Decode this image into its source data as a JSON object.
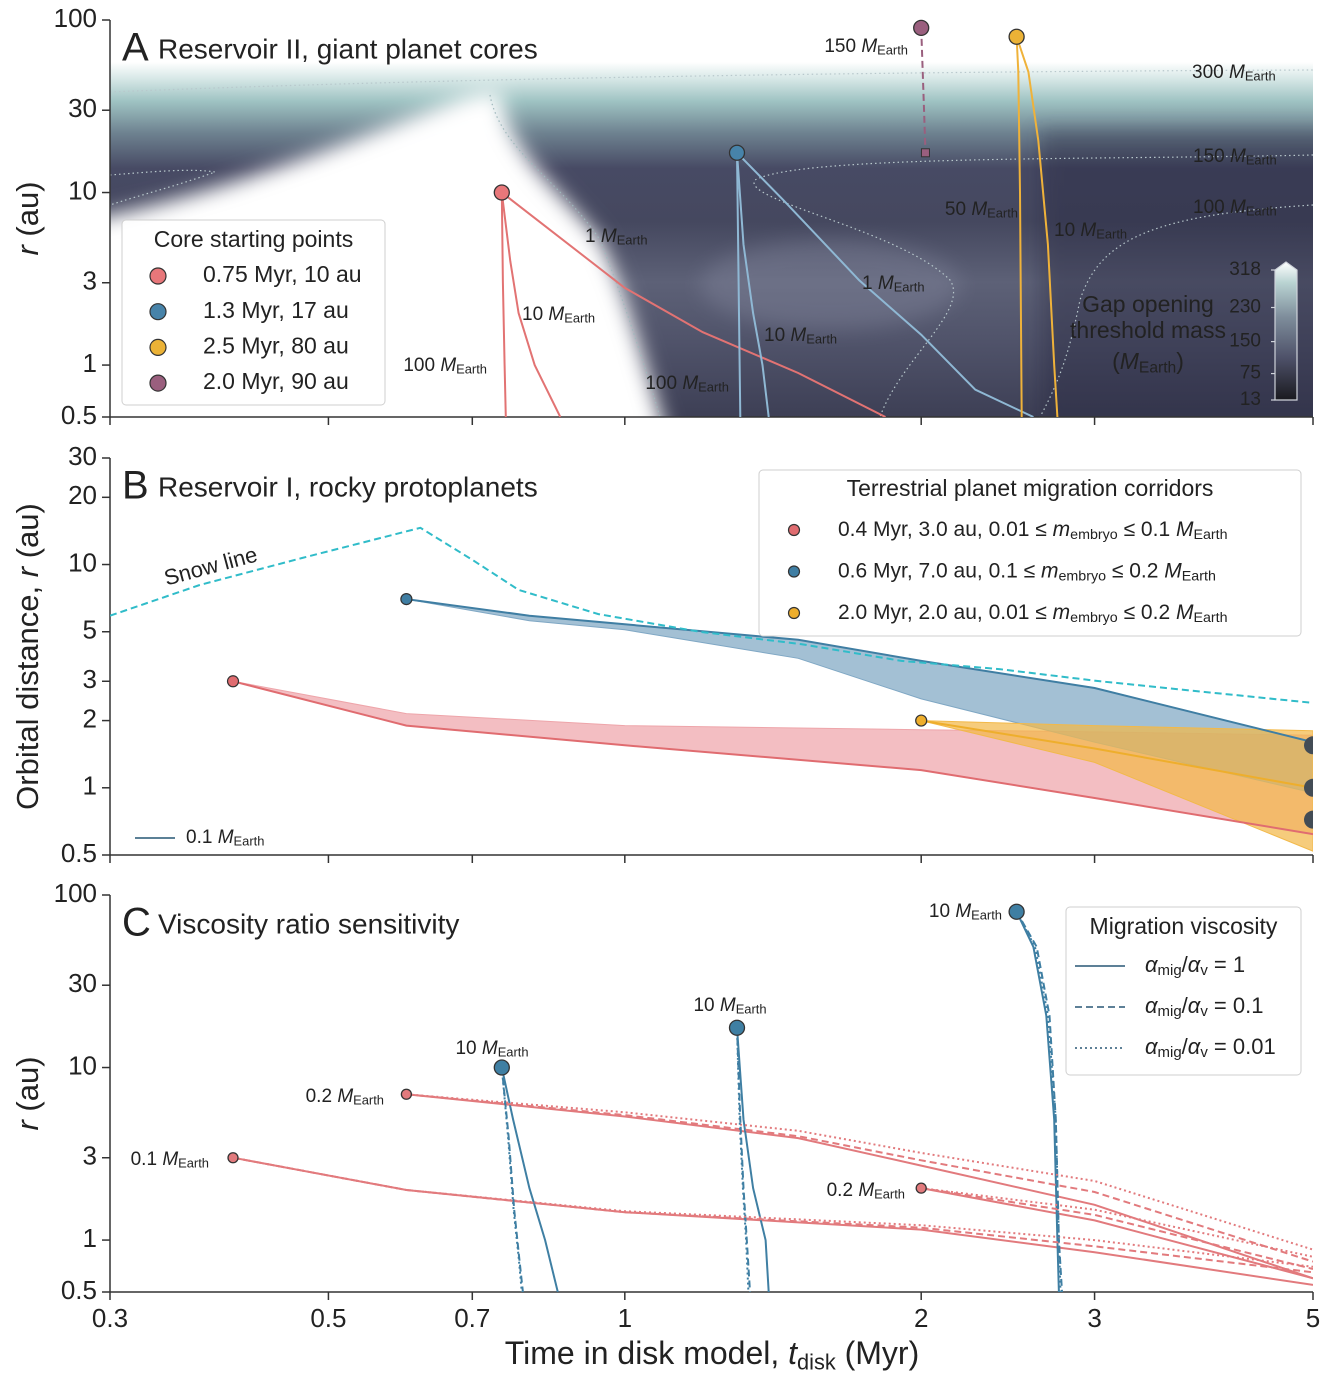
{
  "chart_data": [
    {
      "type": "line",
      "letter": "A",
      "title": "Reservoir II, giant planet cores",
      "ylabel": [
        {
          "i": "r"
        },
        " (au)"
      ],
      "log_x": true,
      "log_y": true,
      "xlim": [
        0.3,
        5
      ],
      "ylim": [
        0.5,
        100
      ],
      "yticks": [
        0.5,
        1,
        3,
        10,
        30,
        100
      ],
      "legend_loc": "lower left",
      "cores": {
        "title": "Core starting points",
        "items": [
          {
            "name": "0.75 Myr, 10 au",
            "color": "#e8777a",
            "x": 0.75,
            "y": 10
          },
          {
            "name": "1.3 Myr, 17 au",
            "color": "#4783a9",
            "x": 1.3,
            "y": 17
          },
          {
            "name": "2.5 Myr, 80 au",
            "color": "#ebb236",
            "x": 2.5,
            "y": 80
          },
          {
            "name": "2.0 Myr, 90 au",
            "color": "#9a5f7e",
            "x": 2.0,
            "y": 90
          }
        ]
      },
      "series": [
        {
          "label": [
            "1 ",
            {
              "i": "M"
            },
            {
              "sub": "Earth"
            }
          ],
          "color": "#e27373",
          "dash": "solid",
          "x": [
            0.75,
            1.0,
            1.2,
            1.5,
            1.84
          ],
          "y": [
            10,
            2.8,
            1.55,
            0.9,
            0.5
          ]
        },
        {
          "label": [
            "10 ",
            {
              "i": "M"
            },
            {
              "sub": "Earth"
            }
          ],
          "color": "#e27373",
          "dash": "solid",
          "x": [
            0.75,
            0.765,
            0.78,
            0.81,
            0.86
          ],
          "y": [
            10,
            4,
            2,
            1,
            0.5
          ]
        },
        {
          "label": [
            "100 ",
            {
              "i": "M"
            },
            {
              "sub": "Earth"
            }
          ],
          "color": "#e27373",
          "dash": "solid",
          "x": [
            0.75,
            0.752,
            0.755,
            0.757
          ],
          "y": [
            10,
            3,
            1,
            0.5
          ]
        },
        {
          "label": [
            "1 ",
            {
              "i": "M"
            },
            {
              "sub": "Earth"
            }
          ],
          "color": "#8fb8d4",
          "dash": "solid",
          "x": [
            1.3,
            1.45,
            1.73,
            2.0,
            2.27,
            2.6
          ],
          "y": [
            17,
            9,
            3.1,
            1.5,
            0.72,
            0.5
          ]
        },
        {
          "label": [
            "10 ",
            {
              "i": "M"
            },
            {
              "sub": "Earth"
            }
          ],
          "color": "#8fb8d4",
          "dash": "solid",
          "x": [
            1.3,
            1.32,
            1.35,
            1.38,
            1.4
          ],
          "y": [
            17,
            5,
            2,
            1,
            0.5
          ]
        },
        {
          "label": [
            "100 ",
            {
              "i": "M"
            },
            {
              "sub": "Earth"
            }
          ],
          "color": "#8fb8d4",
          "dash": "solid",
          "x": [
            1.3,
            1.305,
            1.31
          ],
          "y": [
            17,
            3,
            0.5
          ]
        },
        {
          "label": [
            "150 ",
            {
              "i": "M"
            },
            {
              "sub": "Earth"
            }
          ],
          "color": "#9a5f7e",
          "dash": "dashed",
          "end_marker": "square",
          "x": [
            2.0,
            2.01,
            2.02
          ],
          "y": [
            90,
            40,
            17
          ]
        },
        {
          "label": [
            "50 ",
            {
              "i": "M"
            },
            {
              "sub": "Earth"
            }
          ],
          "color": "#efb23a",
          "dash": "solid",
          "x": [
            2.5,
            2.51,
            2.52,
            2.53
          ],
          "y": [
            80,
            50,
            10,
            0.5
          ]
        },
        {
          "label": [
            "10 ",
            {
              "i": "M"
            },
            {
              "sub": "Earth"
            }
          ],
          "color": "#efb23a",
          "dash": "solid",
          "x": [
            2.5,
            2.57,
            2.63,
            2.69,
            2.73,
            2.75
          ],
          "y": [
            80,
            50,
            20,
            5,
            1,
            0.5
          ]
        }
      ],
      "contour_color": "#c9cdd5",
      "contour_labels": [
        [
          "300 ",
          {
            "i": "M"
          },
          {
            "sub": "Earth"
          }
        ],
        [
          "150 ",
          {
            "i": "M"
          },
          {
            "sub": "Earth"
          }
        ],
        [
          "100 ",
          {
            "i": "M"
          },
          {
            "sub": "Earth"
          }
        ]
      ],
      "colorbar": {
        "label": [
          "Gap opening",
          "threshold mass",
          [
            "(",
            {
              "i": "M"
            },
            {
              "sub": "Earth"
            },
            ")"
          ]
        ],
        "lim": [
          13,
          318
        ],
        "ticks": [
          13,
          75,
          150,
          230,
          318
        ]
      }
    },
    {
      "type": "area",
      "letter": "B",
      "title": "Reservoir I, rocky protoplanets",
      "ylabel": [
        "Orbital distance, ",
        {
          "i": "r"
        },
        " (au)"
      ],
      "log_x": true,
      "log_y": true,
      "xlim": [
        0.3,
        5
      ],
      "ylim": [
        0.5,
        30
      ],
      "yticks": [
        0.5,
        1,
        2,
        3,
        5,
        10,
        20,
        30
      ],
      "legend_loc": "upper right",
      "legend_title": "Terrestrial planet migration corridors",
      "snow_line": {
        "label": "Snow line",
        "color": "#30bcc9",
        "x": [
          0.3,
          0.37,
          0.47,
          0.54,
          0.62,
          0.7,
          0.78,
          0.94,
          1.19,
          1.51,
          1.91,
          2.4,
          3.04,
          3.84,
          5
        ],
        "y": [
          5.9,
          8.1,
          10.7,
          12.5,
          14.6,
          10.5,
          7.7,
          6.0,
          5.0,
          4.4,
          3.7,
          3.4,
          3.0,
          2.7,
          2.4
        ]
      },
      "series": [
        {
          "name": [
            "0.4 Myr, 3.0 au, 0.01 ≤ ",
            {
              "i": "m"
            },
            {
              "sub": "embryo"
            },
            " ≤ 0.1 ",
            {
              "i": "M"
            },
            {
              "sub": "Earth"
            }
          ],
          "color": "#e06c70",
          "fill": "#eea5aa",
          "x": [
            0.4,
            0.6,
            1.0,
            2.0,
            3.0,
            5.0
          ],
          "upper": [
            3,
            2.15,
            1.9,
            1.82,
            1.78,
            1.72
          ],
          "lower": [
            3,
            1.9,
            1.55,
            1.2,
            0.9,
            0.62
          ],
          "track": [
            3,
            1.9,
            1.55,
            1.2,
            0.9,
            0.62
          ]
        },
        {
          "name": [
            "0.6 Myr, 7.0 au, 0.1 ≤ ",
            {
              "i": "m"
            },
            {
              "sub": "embryo"
            },
            " ≤ 0.2 ",
            {
              "i": "M"
            },
            {
              "sub": "Earth"
            }
          ],
          "color": "#3f7ea3",
          "fill": "#7fa7c4",
          "x": [
            0.6,
            0.8,
            1.0,
            1.5,
            2.0,
            3.0,
            5.0
          ],
          "upper": [
            7,
            5.9,
            5.4,
            4.6,
            3.7,
            2.8,
            1.6
          ],
          "lower": [
            7,
            5.6,
            5.1,
            3.8,
            2.5,
            1.6,
            0.95
          ],
          "track": [
            7,
            5.9,
            5.4,
            4.6,
            3.7,
            2.8,
            1.6
          ]
        },
        {
          "name": [
            "2.0 Myr, 2.0 au, 0.01 ≤ ",
            {
              "i": "m"
            },
            {
              "sub": "embryo"
            },
            " ≤ 0.2 ",
            {
              "i": "M"
            },
            {
              "sub": "Earth"
            }
          ],
          "color": "#eeae2c",
          "fill": "#f2b94a",
          "x": [
            2.0,
            3.0,
            5.0
          ],
          "upper": [
            2,
            1.9,
            1.8
          ],
          "lower": [
            2,
            1.3,
            0.52
          ],
          "track": [
            2,
            1.5,
            1.0
          ]
        }
      ],
      "track_legend": {
        "label": [
          "0.1 ",
          {
            "i": "M"
          },
          {
            "sub": "Earth"
          }
        ],
        "color": "#5b8096"
      },
      "end_points": {
        "color": "#434c55",
        "x": [
          5,
          5,
          5
        ],
        "y": [
          1.55,
          1.0,
          0.72
        ]
      }
    },
    {
      "type": "line",
      "letter": "C",
      "title": "Viscosity ratio sensitivity",
      "ylabel": [
        {
          "i": "r"
        },
        " (au)"
      ],
      "xlabel": [
        "Time in disk model, ",
        {
          "i": "t"
        },
        {
          "sub": "disk"
        },
        " (Myr)"
      ],
      "log_x": true,
      "log_y": true,
      "xlim": [
        0.3,
        5
      ],
      "ylim": [
        0.5,
        100
      ],
      "yticks": [
        0.5,
        1,
        3,
        10,
        30,
        100
      ],
      "xticks": [
        0.3,
        0.5,
        0.7,
        1,
        2,
        3,
        5
      ],
      "legend_loc": "upper right",
      "legend_title": "Migration viscosity",
      "cores": {
        "items": [
          {
            "label": [
              "0.1 ",
              {
                "i": "M"
              },
              {
                "sub": "Earth"
              }
            ],
            "color": "#e27a7d",
            "x": 0.4,
            "y": 3
          },
          {
            "label": [
              "0.2 ",
              {
                "i": "M"
              },
              {
                "sub": "Earth"
              }
            ],
            "color": "#e27a7d",
            "x": 0.6,
            "y": 7
          },
          {
            "label": [
              "10 ",
              {
                "i": "M"
              },
              {
                "sub": "Earth"
              }
            ],
            "color": "#3f7fa3",
            "x": 0.75,
            "y": 10
          },
          {
            "label": [
              "10 ",
              {
                "i": "M"
              },
              {
                "sub": "Earth"
              }
            ],
            "color": "#3f7fa3",
            "x": 1.3,
            "y": 17
          },
          {
            "label": [
              "0.2 ",
              {
                "i": "M"
              },
              {
                "sub": "Earth"
              }
            ],
            "color": "#e27a7d",
            "x": 2.0,
            "y": 2
          },
          {
            "label": [
              "10 ",
              {
                "i": "M"
              },
              {
                "sub": "Earth"
              }
            ],
            "color": "#3f7fa3",
            "x": 2.5,
            "y": 80
          }
        ]
      },
      "series": [
        {
          "name": [
            {
              "i": "α"
            },
            {
              "sub": "mig"
            },
            "/",
            {
              "i": "α"
            },
            {
              "sub": "v"
            },
            " = 1"
          ],
          "dash": "solid",
          "color": "#5d8097",
          "tracks": [
            {
              "x": [
                0.4,
                0.6,
                1.0,
                2.0,
                3.0,
                5.0
              ],
              "y": [
                3,
                1.95,
                1.45,
                1.15,
                0.85,
                0.55
              ]
            },
            {
              "x": [
                0.6,
                1.0,
                1.5,
                2.0,
                3.0,
                5.0
              ],
              "y": [
                7,
                5.2,
                3.9,
                2.7,
                1.6,
                0.6
              ]
            },
            {
              "x": [
                0.75,
                0.77,
                0.8,
                0.83,
                0.855
              ],
              "y": [
                10,
                5,
                2,
                1,
                0.5
              ]
            },
            {
              "x": [
                1.3,
                1.32,
                1.35,
                1.39,
                1.4
              ],
              "y": [
                17,
                5,
                2,
                1,
                0.5
              ]
            },
            {
              "x": [
                2.0,
                3.0,
                5.0
              ],
              "y": [
                2,
                1.3,
                0.6
              ]
            },
            {
              "x": [
                2.5,
                2.6,
                2.68,
                2.73,
                2.75,
                2.76
              ],
              "y": [
                80,
                50,
                20,
                5,
                1,
                0.5
              ]
            }
          ]
        },
        {
          "name": [
            {
              "i": "α"
            },
            {
              "sub": "mig"
            },
            "/",
            {
              "i": "α"
            },
            {
              "sub": "v"
            },
            " = 0.1"
          ],
          "dash": "dashed",
          "color": "#5d8097",
          "tracks": [
            {
              "x": [
                0.4,
                0.6,
                1.0,
                2.0,
                3.0,
                5.0
              ],
              "y": [
                3,
                1.95,
                1.45,
                1.18,
                0.92,
                0.65
              ]
            },
            {
              "x": [
                0.6,
                1.0,
                1.5,
                2.0,
                3.0,
                5.0
              ],
              "y": [
                7,
                5.3,
                4.0,
                2.9,
                1.9,
                0.75
              ]
            },
            {
              "x": [
                0.75,
                0.762,
                0.772,
                0.781,
                0.788
              ],
              "y": [
                10,
                4,
                1.5,
                0.8,
                0.5
              ]
            },
            {
              "x": [
                1.3,
                1.31,
                1.32,
                1.33,
                1.34
              ],
              "y": [
                17,
                5,
                2,
                1,
                0.5
              ]
            },
            {
              "x": [
                2.0,
                3.0,
                5.0
              ],
              "y": [
                2,
                1.4,
                0.68
              ]
            },
            {
              "x": [
                2.5,
                2.62,
                2.7,
                2.74,
                2.76,
                2.78
              ],
              "y": [
                80,
                50,
                20,
                5,
                1,
                0.5
              ]
            }
          ]
        },
        {
          "name": [
            {
              "i": "α"
            },
            {
              "sub": "mig"
            },
            "/",
            {
              "i": "α"
            },
            {
              "sub": "v"
            },
            " = 0.01"
          ],
          "dash": "dotted",
          "color": "#5d8097",
          "tracks": [
            {
              "x": [
                0.4,
                0.6,
                1.0,
                2.0,
                3.0,
                5.0
              ],
              "y": [
                3,
                1.95,
                1.47,
                1.22,
                1.0,
                0.7
              ]
            },
            {
              "x": [
                0.6,
                1.0,
                1.5,
                2.0,
                3.0,
                5.0
              ],
              "y": [
                7,
                5.5,
                4.3,
                3.2,
                2.2,
                0.88
              ]
            },
            {
              "x": [
                0.75,
                0.761,
                0.771,
                0.78,
                0.786
              ],
              "y": [
                10,
                4,
                1.5,
                0.8,
                0.5
              ]
            },
            {
              "x": [
                1.3,
                1.308,
                1.318,
                1.328,
                1.335
              ],
              "y": [
                17,
                5,
                2,
                1,
                0.5
              ]
            },
            {
              "x": [
                2.0,
                3.0,
                5.0
              ],
              "y": [
                2,
                1.5,
                0.8
              ]
            },
            {
              "x": [
                2.5,
                2.61,
                2.69,
                2.74,
                2.76,
                2.77
              ],
              "y": [
                80,
                50,
                20,
                5,
                1,
                0.5
              ]
            }
          ]
        }
      ]
    }
  ]
}
